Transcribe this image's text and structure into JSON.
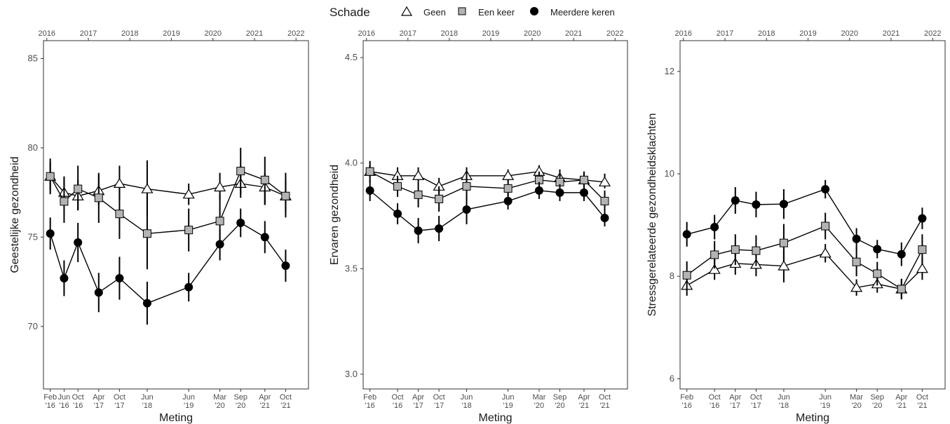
{
  "legend": {
    "title": "Schade",
    "items": [
      {
        "label": "Geen",
        "shape": "triangle",
        "fill": "#ffffff"
      },
      {
        "label": "Een keer",
        "shape": "square",
        "fill": "#b3b3b3"
      },
      {
        "label": "Meerdere keren",
        "shape": "circle",
        "fill": "#000000"
      }
    ]
  },
  "chart_data": [
    {
      "type": "line",
      "xlabel": "Meting",
      "ylabel": "Geestelijke gezondheid",
      "ylim": [
        66.5,
        86
      ],
      "yticks": [
        70,
        75,
        80,
        85
      ],
      "top_years": [
        "2016",
        "2017",
        "2018",
        "2019",
        "2020",
        "2021",
        "2022"
      ],
      "x_labels": [
        {
          "date": "2016-02",
          "line1": "Feb",
          "line2": "'16"
        },
        {
          "date": "2016-06",
          "line1": "Jun",
          "line2": "'16"
        },
        {
          "date": "2016-10",
          "line1": "Oct",
          "line2": "'16"
        },
        {
          "date": "2017-04",
          "line1": "Apr",
          "line2": "'17"
        },
        {
          "date": "2017-10",
          "line1": "Oct",
          "line2": "'17"
        },
        {
          "date": "2018-06",
          "line1": "Jun",
          "line2": "'18"
        },
        {
          "date": "2019-06",
          "line1": "Jun",
          "line2": "'19"
        },
        {
          "date": "2020-03",
          "line1": "Mar",
          "line2": "'20"
        },
        {
          "date": "2020-09",
          "line1": "Sep",
          "line2": "'20"
        },
        {
          "date": "2021-04",
          "line1": "Apr",
          "line2": "'21"
        },
        {
          "date": "2021-10",
          "line1": "Oct",
          "line2": "'21"
        }
      ],
      "series": [
        {
          "name": "Geen",
          "values": [
            78.4,
            77.5,
            77.3,
            77.6,
            78.0,
            77.7,
            77.4,
            77.8,
            78.0,
            77.8,
            77.3
          ],
          "lower": [
            77.6,
            76.8,
            76.5,
            76.8,
            77.1,
            76.2,
            76.8,
            77.1,
            77.2,
            76.8,
            76.4
          ],
          "upper": [
            79.2,
            78.4,
            78.2,
            78.5,
            79.0,
            79.3,
            78.0,
            78.6,
            79.0,
            78.6,
            78.2
          ]
        },
        {
          "name": "Een keer",
          "values": [
            78.4,
            77.0,
            77.7,
            77.2,
            76.3,
            75.2,
            75.4,
            75.9,
            78.7,
            78.2,
            77.3
          ],
          "lower": [
            77.4,
            75.8,
            76.5,
            75.8,
            74.9,
            73.2,
            74.2,
            74.5,
            77.4,
            76.8,
            76.1
          ],
          "upper": [
            79.4,
            78.3,
            79.0,
            78.6,
            77.8,
            77.3,
            76.6,
            77.4,
            80.0,
            79.5,
            78.6
          ]
        },
        {
          "name": "Meerdere keren",
          "values": [
            75.2,
            72.7,
            74.7,
            71.9,
            72.7,
            71.3,
            72.2,
            74.6,
            75.8,
            75.0,
            73.4
          ],
          "lower": [
            74.3,
            71.7,
            73.6,
            70.8,
            71.5,
            70.1,
            71.4,
            73.7,
            75.0,
            74.1,
            72.5
          ],
          "upper": [
            76.1,
            73.7,
            75.8,
            73.0,
            73.9,
            72.5,
            73.0,
            75.4,
            76.6,
            75.9,
            74.3
          ]
        }
      ]
    },
    {
      "type": "line",
      "xlabel": "Meting",
      "ylabel": "Ervaren gezondheid",
      "ylim": [
        2.93,
        4.58
      ],
      "yticks": [
        3.0,
        3.5,
        4.0,
        4.5
      ],
      "ytick_labels": [
        "3.0",
        "3.5",
        "4.0",
        "4.5"
      ],
      "top_years": [
        "2016",
        "2017",
        "2018",
        "2019",
        "2020",
        "2021",
        "2022"
      ],
      "x_labels": [
        {
          "date": "2016-02",
          "line1": "Feb",
          "line2": "'16"
        },
        {
          "date": "2016-10",
          "line1": "Oct",
          "line2": "'16"
        },
        {
          "date": "2017-04",
          "line1": "Apr",
          "line2": "'17"
        },
        {
          "date": "2017-10",
          "line1": "Oct",
          "line2": "'17"
        },
        {
          "date": "2018-06",
          "line1": "Jun",
          "line2": "'18"
        },
        {
          "date": "2019-06",
          "line1": "Jun",
          "line2": "'19"
        },
        {
          "date": "2020-03",
          "line1": "Mar",
          "line2": "'20"
        },
        {
          "date": "2020-09",
          "line1": "Sep",
          "line2": "'20"
        },
        {
          "date": "2021-04",
          "line1": "Apr",
          "line2": "'21"
        },
        {
          "date": "2021-10",
          "line1": "Oct",
          "line2": "'21"
        }
      ],
      "series": [
        {
          "name": "Geen",
          "values": [
            3.96,
            3.94,
            3.94,
            3.89,
            3.94,
            3.94,
            3.96,
            3.93,
            3.92,
            3.91
          ],
          "lower": [
            3.93,
            3.91,
            3.91,
            3.86,
            3.91,
            3.91,
            3.93,
            3.9,
            3.89,
            3.88
          ],
          "upper": [
            3.99,
            3.98,
            3.98,
            3.93,
            3.98,
            3.97,
            3.99,
            3.97,
            3.96,
            3.95
          ]
        },
        {
          "name": "Een keer",
          "values": [
            3.96,
            3.89,
            3.85,
            3.83,
            3.89,
            3.88,
            3.92,
            3.91,
            3.92,
            3.82
          ],
          "lower": [
            3.91,
            3.84,
            3.79,
            3.77,
            3.82,
            3.84,
            3.88,
            3.87,
            3.88,
            3.77
          ],
          "upper": [
            4.01,
            3.94,
            3.91,
            3.89,
            3.96,
            3.92,
            3.96,
            3.95,
            3.96,
            3.87
          ]
        },
        {
          "name": "Meerdere keren",
          "values": [
            3.87,
            3.76,
            3.68,
            3.69,
            3.78,
            3.82,
            3.87,
            3.86,
            3.86,
            3.74
          ],
          "lower": [
            3.82,
            3.71,
            3.62,
            3.63,
            3.71,
            3.78,
            3.83,
            3.82,
            3.82,
            3.7
          ],
          "upper": [
            3.92,
            3.81,
            3.74,
            3.75,
            3.85,
            3.86,
            3.91,
            3.9,
            3.9,
            3.78
          ]
        }
      ]
    },
    {
      "type": "line",
      "xlabel": "Meting",
      "ylabel": "Stressgerelateerde gezondheidsklachten",
      "ylim": [
        5.8,
        12.6
      ],
      "yticks": [
        6,
        8,
        10,
        12
      ],
      "top_years": [
        "2016",
        "2017",
        "2018",
        "2019",
        "2020",
        "2021",
        "2022"
      ],
      "x_labels": [
        {
          "date": "2016-02",
          "line1": "Feb",
          "line2": "'16"
        },
        {
          "date": "2016-10",
          "line1": "Oct",
          "line2": "'16"
        },
        {
          "date": "2017-04",
          "line1": "Apr",
          "line2": "'17"
        },
        {
          "date": "2017-10",
          "line1": "Oct",
          "line2": "'17"
        },
        {
          "date": "2018-06",
          "line1": "Jun",
          "line2": "'18"
        },
        {
          "date": "2019-06",
          "line1": "Jun",
          "line2": "'19"
        },
        {
          "date": "2020-03",
          "line1": "Mar",
          "line2": "'20"
        },
        {
          "date": "2020-09",
          "line1": "Sep",
          "line2": "'20"
        },
        {
          "date": "2021-04",
          "line1": "Apr",
          "line2": "'21"
        },
        {
          "date": "2021-10",
          "line1": "Oct",
          "line2": "'21"
        }
      ],
      "series": [
        {
          "name": "Geen",
          "values": [
            7.82,
            8.13,
            8.25,
            8.23,
            8.2,
            8.45,
            7.78,
            7.85,
            7.75,
            8.15
          ],
          "lower": [
            7.62,
            7.93,
            8.03,
            8.0,
            7.88,
            8.27,
            7.62,
            7.68,
            7.55,
            7.93
          ],
          "upper": [
            8.02,
            8.33,
            8.47,
            8.46,
            8.52,
            8.63,
            7.94,
            8.02,
            7.95,
            8.37
          ]
        },
        {
          "name": "Een keer",
          "values": [
            8.02,
            8.42,
            8.52,
            8.5,
            8.65,
            8.98,
            8.28,
            8.05,
            7.75,
            8.52
          ],
          "lower": [
            7.75,
            8.15,
            8.22,
            8.2,
            8.28,
            8.72,
            8.0,
            7.82,
            7.55,
            8.22
          ],
          "upper": [
            8.29,
            8.69,
            8.82,
            8.8,
            9.02,
            9.24,
            8.56,
            8.28,
            7.95,
            8.82
          ]
        },
        {
          "name": "Meerdere keren",
          "values": [
            8.82,
            8.96,
            9.48,
            9.4,
            9.41,
            9.7,
            8.73,
            8.53,
            8.43,
            9.13
          ],
          "lower": [
            8.58,
            8.72,
            9.22,
            9.15,
            9.12,
            9.52,
            8.52,
            8.35,
            8.2,
            8.92
          ],
          "upper": [
            9.06,
            9.2,
            9.74,
            9.65,
            9.7,
            9.88,
            8.94,
            8.71,
            8.66,
            9.34
          ]
        }
      ]
    }
  ]
}
